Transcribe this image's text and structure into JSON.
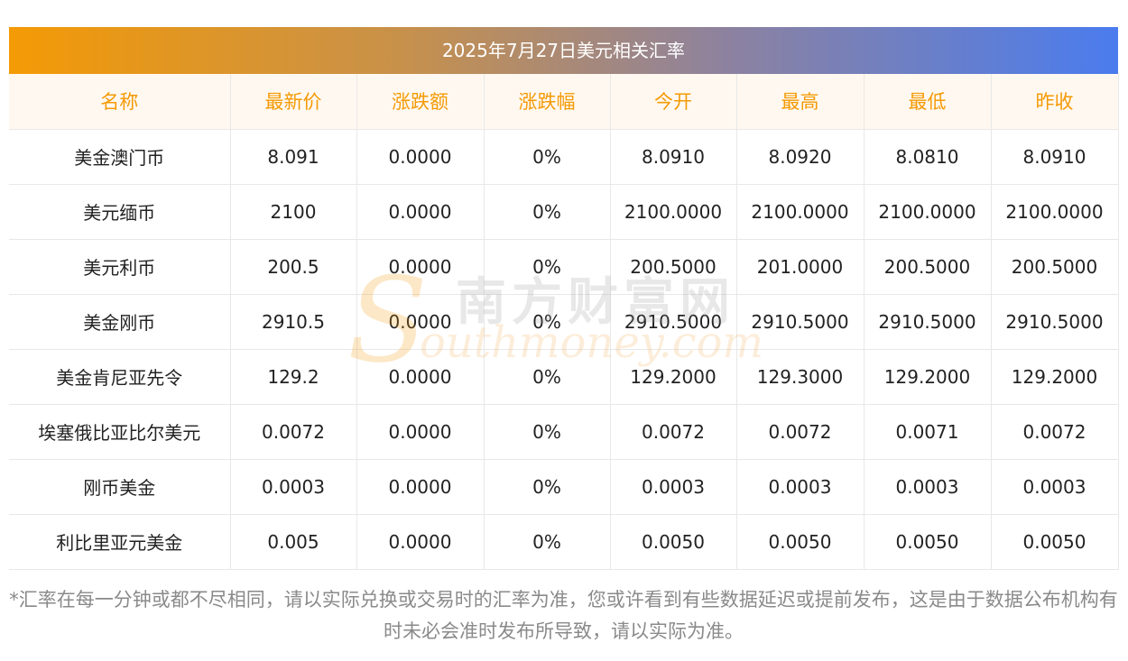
{
  "title": "2025年7月27日美元相关汇率",
  "columns": [
    "名称",
    "最新价",
    "涨跌额",
    "涨跌幅",
    "今开",
    "最高",
    "最低",
    "昨收"
  ],
  "rows": [
    [
      "美金澳门币",
      "8.091",
      "0.0000",
      "0%",
      "8.0910",
      "8.0920",
      "8.0810",
      "8.0910"
    ],
    [
      "美元缅币",
      "2100",
      "0.0000",
      "0%",
      "2100.0000",
      "2100.0000",
      "2100.0000",
      "2100.0000"
    ],
    [
      "美元利币",
      "200.5",
      "0.0000",
      "0%",
      "200.5000",
      "201.0000",
      "200.5000",
      "200.5000"
    ],
    [
      "美金刚币",
      "2910.5",
      "0.0000",
      "0%",
      "2910.5000",
      "2910.5000",
      "2910.5000",
      "2910.5000"
    ],
    [
      "美金肯尼亚先令",
      "129.2",
      "0.0000",
      "0%",
      "129.2000",
      "129.3000",
      "129.2000",
      "129.2000"
    ],
    [
      "埃塞俄比亚比尔美元",
      "0.0072",
      "0.0000",
      "0%",
      "0.0072",
      "0.0072",
      "0.0071",
      "0.0072"
    ],
    [
      "刚币美金",
      "0.0003",
      "0.0000",
      "0%",
      "0.0003",
      "0.0003",
      "0.0003",
      "0.0003"
    ],
    [
      "利比里亚元美金",
      "0.005",
      "0.0000",
      "0%",
      "0.0050",
      "0.0050",
      "0.0050",
      "0.0050"
    ]
  ],
  "note": "*汇率在每一分钟或都不尽相同，请以实际兑换或交易时的汇率为准，您或许看到有些数据延迟或提前发布，这是由于数据公布机构有时未必会准时发布所导致，请以实际为准。",
  "watermark": {
    "letter": "S",
    "cn": "南方财富网",
    "en": "outhmoney.com"
  },
  "colors": {
    "accent": "#f49a05",
    "header_bg": "#fff8f0",
    "gradient_start": "#f49a05",
    "gradient_end": "#4a7cee"
  }
}
